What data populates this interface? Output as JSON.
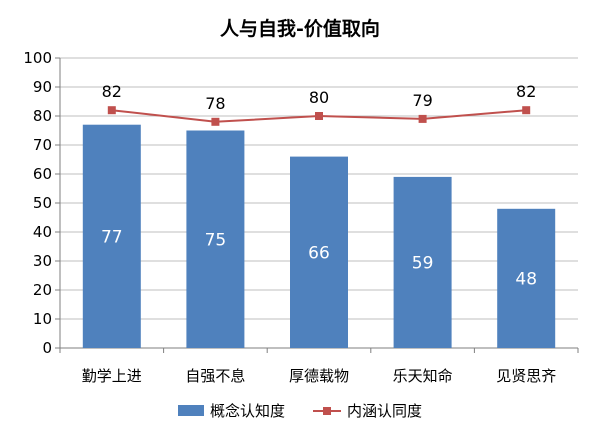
{
  "chart_data": {
    "type": "bar",
    "title": "人与自我-价值取向",
    "categories": [
      "勤学上进",
      "自强不息",
      "厚德载物",
      "乐天知命",
      "见贤思齐"
    ],
    "series": [
      {
        "name": "概念认知度",
        "kind": "bar",
        "values": [
          77,
          75,
          66,
          59,
          48
        ]
      },
      {
        "name": "内涵认同度",
        "kind": "line",
        "values": [
          82,
          78,
          80,
          79,
          82
        ]
      }
    ],
    "yticks": [
      "0",
      "10",
      "20",
      "30",
      "40",
      "50",
      "60",
      "70",
      "80",
      "90",
      "100"
    ],
    "ylim": [
      0,
      100
    ],
    "grid": true,
    "legend": "bottom",
    "colors": {
      "bar": "#4f81bd",
      "line": "#c0504d",
      "grid": "#bfbfbf",
      "axis": "#7f7f7f"
    }
  }
}
